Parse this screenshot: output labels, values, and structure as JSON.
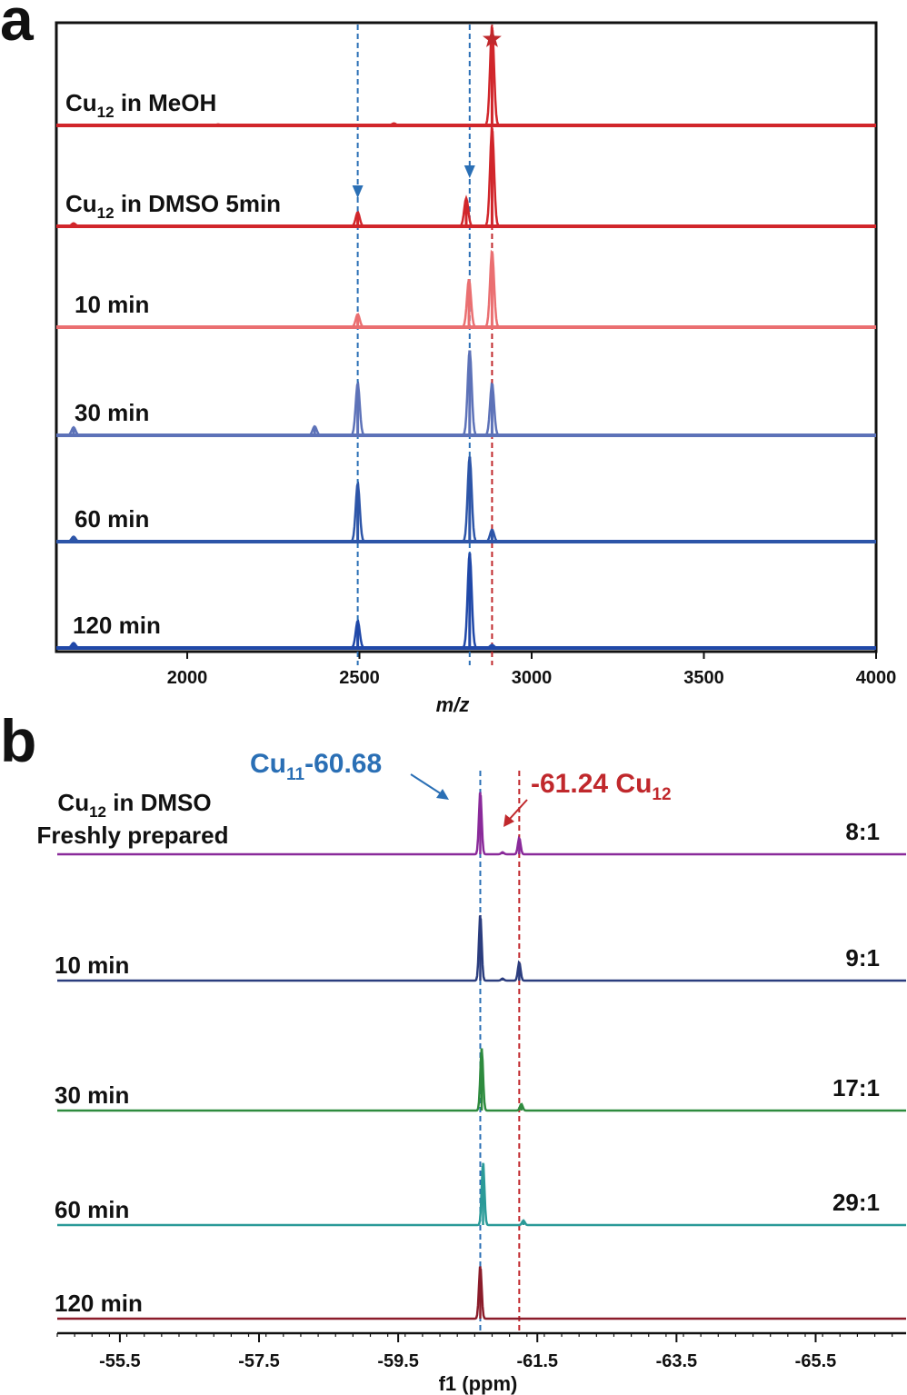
{
  "chart_data": [
    {
      "panel": "a",
      "type": "line",
      "xlabel": "m/z",
      "xlim": [
        1620,
        4000
      ],
      "xticks": [
        2000,
        2500,
        3000,
        3500,
        4000
      ],
      "xtick_labels": [
        "2000",
        "2500",
        "3000",
        "3500",
        "4000"
      ],
      "ylabel": "",
      "marker_lines": [
        {
          "x": 2495,
          "color": "#2a6fb5"
        },
        {
          "x": 2820,
          "color": "#2a6fb5"
        },
        {
          "x": 2885,
          "color": "#c0282c"
        }
      ],
      "series": [
        {
          "name": "Cu12 in MeOH",
          "label_main": "Cu",
          "label_sub": "12",
          "label_rest": " in MeOH",
          "color": "#d1262b",
          "peaks": [
            {
              "x": 2885,
              "h": 0.98
            },
            {
              "x": 2600,
              "h": 0.02
            },
            {
              "x": 2090,
              "h": 0.01
            }
          ]
        },
        {
          "name": "Cu12 in DMSO 5min",
          "label_main": "Cu",
          "label_sub": "12",
          "label_rest": " in DMSO 5min",
          "color": "#d1262b",
          "peaks": [
            {
              "x": 2495,
              "h": 0.14
            },
            {
              "x": 2810,
              "h": 0.28
            },
            {
              "x": 2885,
              "h": 0.98
            },
            {
              "x": 1670,
              "h": 0.03
            }
          ]
        },
        {
          "name": "10 min",
          "label_main": "10 min",
          "color": "#ea6f71",
          "peaks": [
            {
              "x": 2495,
              "h": 0.13
            },
            {
              "x": 2818,
              "h": 0.48
            },
            {
              "x": 2885,
              "h": 0.76
            }
          ]
        },
        {
          "name": "30 min",
          "label_main": "30 min",
          "color": "#5d72b8",
          "peaks": [
            {
              "x": 1670,
              "h": 0.08
            },
            {
              "x": 2370,
              "h": 0.09
            },
            {
              "x": 2495,
              "h": 0.52
            },
            {
              "x": 2820,
              "h": 0.85
            },
            {
              "x": 2885,
              "h": 0.52
            }
          ]
        },
        {
          "name": "60 min",
          "label_main": "60 min",
          "color": "#2d55a8",
          "peaks": [
            {
              "x": 1670,
              "h": 0.05
            },
            {
              "x": 2495,
              "h": 0.58
            },
            {
              "x": 2820,
              "h": 0.85
            },
            {
              "x": 2885,
              "h": 0.12
            }
          ]
        },
        {
          "name": "120 min",
          "label_main": "120 min",
          "color": "#2048a8",
          "peaks": [
            {
              "x": 1670,
              "h": 0.05
            },
            {
              "x": 2495,
              "h": 0.27
            },
            {
              "x": 2820,
              "h": 0.95
            },
            {
              "x": 2885,
              "h": 0.03
            }
          ]
        }
      ]
    },
    {
      "panel": "b",
      "type": "line",
      "xlabel": "f1 (ppm)",
      "xlim": [
        -54.6,
        -66.8
      ],
      "xticks": [
        -55.5,
        -57.5,
        -59.5,
        -61.5,
        -63.5,
        -65.5
      ],
      "xtick_labels": [
        "-55.5",
        "-57.5",
        "-59.5",
        "-61.5",
        "-63.5",
        "-65.5"
      ],
      "annotations": {
        "cu11": {
          "main": "Cu",
          "sub": "11",
          "rest": "-60.68",
          "x": -60.68,
          "color": "#2a6fb5"
        },
        "cu12": {
          "main": "-61.24 Cu",
          "sub": "12",
          "x": -61.24,
          "color": "#c0282c"
        }
      },
      "series": [
        {
          "name": "Cu12 in DMSO Freshly prepared",
          "label_line1_main": "Cu",
          "label_line1_sub": "12",
          "label_line1_rest": " in DMSO",
          "label_line2": "Freshly prepared",
          "ratio": "8:1",
          "color": "#8a2a9a",
          "peaks": [
            {
              "x": -60.68,
              "h": 0.95
            },
            {
              "x": -61.24,
              "h": 0.25
            },
            {
              "x": -61.0,
              "h": 0.03
            }
          ]
        },
        {
          "name": "10 min",
          "label_main": "10 min",
          "ratio": "9:1",
          "color": "#2b3d7e",
          "peaks": [
            {
              "x": -60.68,
              "h": 1.0
            },
            {
              "x": -61.24,
              "h": 0.28
            },
            {
              "x": -61.0,
              "h": 0.03
            }
          ]
        },
        {
          "name": "30 min",
          "label_main": "30 min",
          "ratio": "17:1",
          "color": "#2e8b3e",
          "peaks": [
            {
              "x": -60.7,
              "h": 0.95
            },
            {
              "x": -61.27,
              "h": 0.1
            }
          ]
        },
        {
          "name": "60 min",
          "label_main": "60 min",
          "ratio": "29:1",
          "color": "#2a9a98",
          "peaks": [
            {
              "x": -60.72,
              "h": 0.95
            },
            {
              "x": -61.3,
              "h": 0.07
            }
          ]
        },
        {
          "name": "120 min",
          "label_main": "120 min",
          "color": "#8b1c2a",
          "peaks": [
            {
              "x": -60.68,
              "h": 0.8
            }
          ]
        }
      ]
    }
  ],
  "panels": {
    "a": "a",
    "b": "b"
  }
}
